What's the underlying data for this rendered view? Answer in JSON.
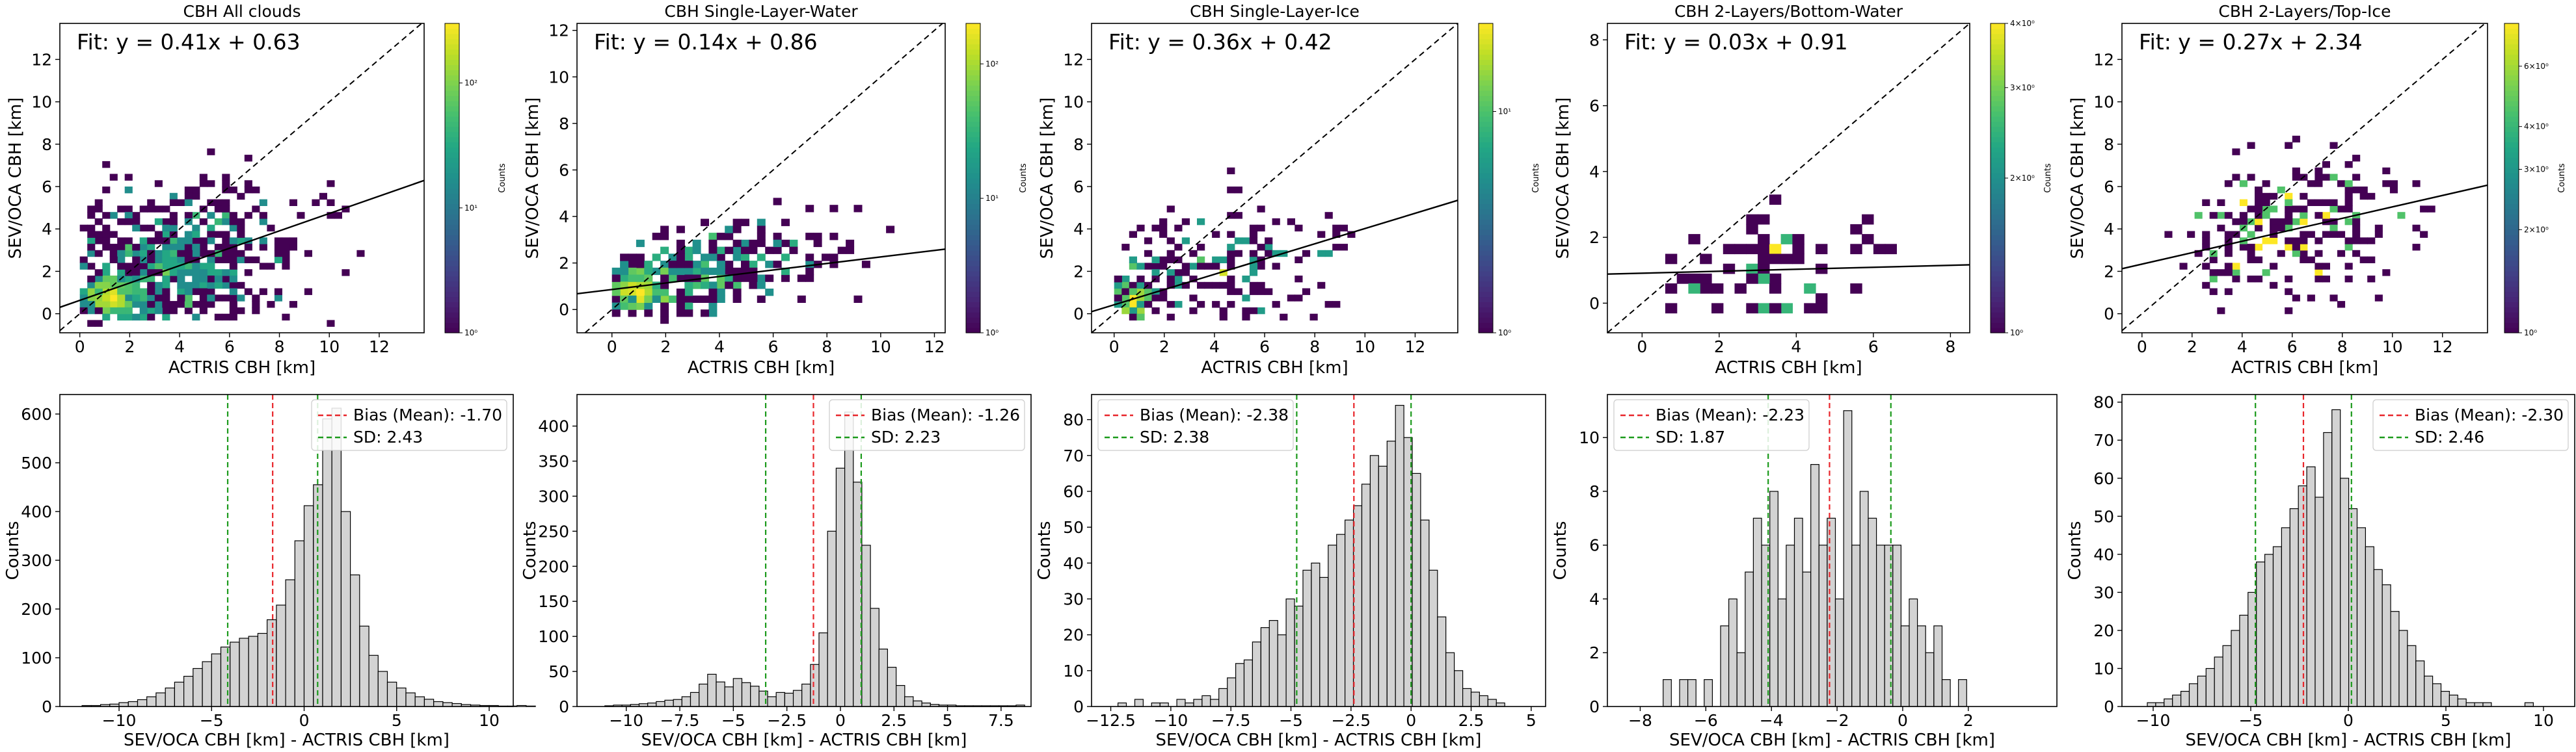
{
  "chart_data": [
    {
      "type": "heatmap",
      "title": "CBH All clouds",
      "fit_text": "Fit: y = 0.41x + 0.63",
      "fit": {
        "slope": 0.41,
        "intercept": 0.63
      },
      "xlabel": "ACTRIS CBH [km]",
      "ylabel": "SEV/OCA CBH [km]",
      "xlim": [
        -0.8,
        13.8
      ],
      "ylim": [
        -0.9,
        13.7
      ],
      "xticks": [
        0,
        2,
        4,
        6,
        8,
        10,
        12
      ],
      "yticks": [
        0,
        2,
        4,
        6,
        8,
        10,
        12
      ],
      "colorbar": {
        "label": "Counts",
        "scale": "log",
        "min": 1,
        "max": 300,
        "ticks": [
          {
            "v": 1,
            "t": "10⁰"
          },
          {
            "v": 10,
            "t": "10¹"
          },
          {
            "v": 100,
            "t": "10²"
          }
        ]
      },
      "density": {
        "seed": 11,
        "n": 900,
        "xc": 3.5,
        "yc": 2.2,
        "sx": 2.6,
        "sy": 1.8,
        "hot": [
          1.2,
          0.8
        ],
        "xr": [
          0,
          11.5
        ],
        "yr": [
          -0.4,
          11
        ]
      }
    },
    {
      "type": "heatmap",
      "title": "CBH Single-Layer-Water",
      "fit_text": "Fit: y = 0.14x + 0.86",
      "fit": {
        "slope": 0.14,
        "intercept": 0.86
      },
      "xlabel": "ACTRIS CBH [km]",
      "ylabel": "SEV/OCA CBH [km]",
      "xlim": [
        -1.3,
        12.4
      ],
      "ylim": [
        -1.0,
        12.3
      ],
      "xticks": [
        0,
        2,
        4,
        6,
        8,
        10,
        12
      ],
      "yticks": [
        0,
        2,
        4,
        6,
        8,
        10,
        12
      ],
      "colorbar": {
        "label": "Counts",
        "scale": "log",
        "min": 1,
        "max": 200,
        "ticks": [
          {
            "v": 1,
            "t": "10⁰"
          },
          {
            "v": 10,
            "t": "10¹"
          },
          {
            "v": 100,
            "t": "10²"
          }
        ]
      },
      "density": {
        "seed": 23,
        "n": 520,
        "xc": 3.0,
        "yc": 1.4,
        "sx": 2.8,
        "sy": 0.9,
        "hot": [
          0.9,
          0.8
        ],
        "xr": [
          0,
          11
        ],
        "yr": [
          -0.4,
          8
        ]
      }
    },
    {
      "type": "heatmap",
      "title": "CBH Single-Layer-Ice",
      "fit_text": "Fit: y = 0.36x + 0.42",
      "fit": {
        "slope": 0.36,
        "intercept": 0.42
      },
      "xlabel": "ACTRIS CBH [km]",
      "ylabel": "SEV/OCA CBH [km]",
      "xlim": [
        -0.9,
        13.7
      ],
      "ylim": [
        -0.9,
        13.7
      ],
      "xticks": [
        0,
        2,
        4,
        6,
        8,
        10,
        12
      ],
      "yticks": [
        0,
        2,
        4,
        6,
        8,
        10,
        12
      ],
      "colorbar": {
        "label": "Counts",
        "scale": "log",
        "min": 1,
        "max": 25,
        "ticks": [
          {
            "v": 1,
            "t": "10⁰"
          },
          {
            "v": 10,
            "t": "10¹"
          }
        ]
      },
      "density": {
        "seed": 37,
        "n": 300,
        "xc": 3.2,
        "yc": 1.6,
        "sx": 2.8,
        "sy": 1.6,
        "hot": [
          0.6,
          0.8
        ],
        "xr": [
          0,
          11
        ],
        "yr": [
          -0.3,
          10
        ]
      }
    },
    {
      "type": "heatmap",
      "title": "CBH 2-Layers/Bottom-Water",
      "fit_text": "Fit: y = 0.03x + 0.91",
      "fit": {
        "slope": 0.03,
        "intercept": 0.91
      },
      "xlabel": "ACTRIS CBH [km]",
      "ylabel": "SEV/OCA CBH [km]",
      "xlim": [
        -0.9,
        8.5
      ],
      "ylim": [
        -0.9,
        8.5
      ],
      "xticks": [
        0,
        2,
        4,
        6,
        8
      ],
      "yticks": [
        0,
        2,
        4,
        6,
        8
      ],
      "colorbar": {
        "label": "Counts",
        "scale": "log",
        "min": 1,
        "max": 4,
        "ticks": [
          {
            "v": 1,
            "t": "10⁰"
          },
          {
            "v": 2,
            "t": "2×10⁰"
          },
          {
            "v": 3,
            "t": "3×10⁰"
          },
          {
            "v": 4,
            "t": "4×10⁰"
          }
        ]
      },
      "density": {
        "seed": 41,
        "n": 75,
        "xc": 3.5,
        "yc": 0.9,
        "sx": 1.7,
        "sy": 0.9,
        "hot": [
          0,
          0
        ],
        "xr": [
          0.5,
          7.5
        ],
        "yr": [
          -0.3,
          4
        ]
      }
    },
    {
      "type": "heatmap",
      "title": "CBH 2-Layers/Top-Ice",
      "fit_text": "Fit: y = 0.27x + 2.34",
      "fit": {
        "slope": 0.27,
        "intercept": 2.34
      },
      "xlabel": "ACTRIS CBH [km]",
      "ylabel": "SEV/OCA CBH [km]",
      "xlim": [
        -0.8,
        13.8
      ],
      "ylim": [
        -0.9,
        13.7
      ],
      "xticks": [
        0,
        2,
        4,
        6,
        8,
        10,
        12
      ],
      "yticks": [
        0,
        2,
        4,
        6,
        8,
        10,
        12
      ],
      "colorbar": {
        "label": "Counts",
        "scale": "log",
        "min": 1,
        "max": 8,
        "ticks": [
          {
            "v": 1,
            "t": "10⁰"
          },
          {
            "v": 2,
            "t": "2×10⁰"
          },
          {
            "v": 3,
            "t": "3×10⁰"
          },
          {
            "v": 4,
            "t": "4×10⁰"
          },
          {
            "v": 6,
            "t": "6×10⁰"
          }
        ]
      },
      "density": {
        "seed": 53,
        "n": 260,
        "xc": 6.0,
        "yc": 3.8,
        "sx": 2.6,
        "sy": 1.8,
        "hot": [
          0,
          0
        ],
        "xr": [
          1,
          12
        ],
        "yr": [
          0,
          10.5
        ]
      }
    },
    {
      "type": "bar",
      "subtype": "histogram",
      "xlabel": "SEV/OCA CBH [km] - ACTRIS CBH [km]",
      "ylabel": "Counts",
      "xlim": [
        -13.2,
        11.3
      ],
      "ylim": [
        0,
        640
      ],
      "xticks": [
        -10,
        -5,
        0,
        5,
        10
      ],
      "yticks": [
        0,
        100,
        200,
        300,
        400,
        500,
        600
      ],
      "bias": -1.7,
      "sd": 2.43,
      "legend": [
        "Bias (Mean): -1.70",
        "SD: 2.43"
      ],
      "bins_start": -12.0,
      "bin_width": 0.5,
      "counts": [
        2,
        2,
        4,
        5,
        8,
        10,
        14,
        20,
        28,
        38,
        50,
        62,
        78,
        92,
        108,
        122,
        132,
        140,
        144,
        150,
        178,
        208,
        260,
        340,
        412,
        455,
        590,
        612,
        400,
        270,
        165,
        105,
        72,
        50,
        38,
        28,
        20,
        15,
        10,
        8,
        6,
        4,
        3,
        2,
        2,
        1,
        1,
        2,
        1
      ]
    },
    {
      "type": "bar",
      "subtype": "histogram",
      "xlabel": "SEV/OCA CBH [km] - ACTRIS CBH [km]",
      "ylabel": "Counts",
      "xlim": [
        -12.3,
        8.9
      ],
      "ylim": [
        0,
        445
      ],
      "xticks": [
        -10.0,
        -7.5,
        -5.0,
        -2.5,
        0.0,
        2.5,
        5.0,
        7.5
      ],
      "yticks": [
        0,
        50,
        100,
        150,
        200,
        250,
        300,
        350,
        400
      ],
      "bias": -1.26,
      "sd": 2.23,
      "legend": [
        "Bias (Mean): -1.26",
        "SD: 2.23"
      ],
      "bins_start": -11.0,
      "bin_width": 0.4,
      "counts": [
        1,
        2,
        2,
        3,
        4,
        5,
        7,
        9,
        10,
        14,
        20,
        32,
        46,
        35,
        28,
        40,
        34,
        29,
        22,
        14,
        20,
        19,
        23,
        32,
        60,
        105,
        250,
        340,
        420,
        320,
        230,
        140,
        82,
        56,
        30,
        14,
        8,
        5,
        3,
        2,
        2,
        1,
        1,
        1,
        1,
        1,
        1,
        1,
        2
      ]
    },
    {
      "type": "bar",
      "subtype": "histogram",
      "xlabel": "SEV/OCA CBH [km] - ACTRIS CBH [km]",
      "ylabel": "Counts",
      "xlim": [
        -13.3,
        5.6
      ],
      "ylim": [
        0,
        87
      ],
      "xticks": [
        -12.5,
        -10.0,
        -7.5,
        -5.0,
        -2.5,
        0.0,
        2.5,
        5.0
      ],
      "yticks": [
        0,
        10,
        20,
        30,
        40,
        50,
        60,
        70,
        80
      ],
      "bias": -2.38,
      "sd": 2.38,
      "legend": [
        "Bias (Mean): -2.38",
        "SD: 2.38"
      ],
      "bins_start": -12.2,
      "bin_width": 0.35,
      "counts": [
        1,
        0,
        2,
        0,
        1,
        1,
        0,
        2,
        1,
        2,
        3,
        2,
        5,
        8,
        12,
        13,
        18,
        22,
        24,
        20,
        30,
        28,
        38,
        40,
        36,
        45,
        48,
        52,
        56,
        62,
        70,
        67,
        74,
        84,
        75,
        65,
        52,
        38,
        25,
        15,
        10,
        5,
        4,
        3,
        2,
        1
      ]
    },
    {
      "type": "bar",
      "subtype": "histogram",
      "xlabel": "SEV/OCA CBH [km] - ACTRIS CBH [km]",
      "ylabel": "Counts",
      "xlim": [
        -9.0,
        4.7
      ],
      "ylim": [
        0,
        11.6
      ],
      "xticks": [
        -8,
        -6,
        -4,
        -2,
        0,
        2
      ],
      "yticks": [
        0,
        2,
        4,
        6,
        8,
        10
      ],
      "bias": -2.23,
      "sd": 1.87,
      "legend": [
        "Bias (Mean): -2.23",
        "SD: 1.87"
      ],
      "bins_start": -7.3,
      "bin_width": 0.25,
      "counts": [
        1,
        0,
        1,
        1,
        0,
        1,
        0,
        3,
        4,
        2,
        5,
        7,
        6,
        8,
        4,
        6,
        7,
        5,
        9,
        6,
        7,
        4,
        11,
        6,
        8,
        7,
        6,
        6,
        6,
        3,
        4,
        3,
        2,
        3,
        1,
        0,
        1,
        0
      ]
    },
    {
      "type": "bar",
      "subtype": "histogram",
      "xlabel": "SEV/OCA CBH [km] - ACTRIS CBH [km]",
      "ylabel": "Counts",
      "xlim": [
        -11.6,
        11.6
      ],
      "ylim": [
        0,
        82
      ],
      "xticks": [
        -10,
        -5,
        0,
        5,
        10
      ],
      "yticks": [
        0,
        10,
        20,
        30,
        40,
        50,
        60,
        70,
        80
      ],
      "bias": -2.3,
      "sd": 2.46,
      "legend": [
        "Bias (Mean): -2.30",
        "SD: 2.46"
      ],
      "bins_start": -10.3,
      "bin_width": 0.43,
      "counts": [
        1,
        1,
        2,
        3,
        4,
        6,
        8,
        10,
        13,
        16,
        20,
        24,
        30,
        38,
        40,
        42,
        47,
        52,
        58,
        63,
        55,
        72,
        78,
        60,
        52,
        47,
        42,
        36,
        32,
        25,
        20,
        16,
        12,
        8,
        6,
        4,
        3,
        2,
        1,
        1,
        1,
        0,
        0,
        0,
        0,
        1
      ]
    }
  ]
}
